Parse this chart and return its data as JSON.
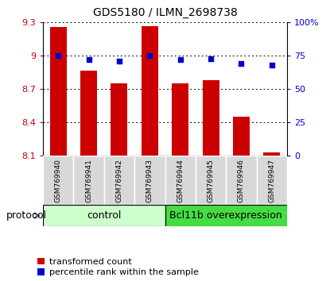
{
  "title": "GDS5180 / ILMN_2698738",
  "samples": [
    "GSM769940",
    "GSM769941",
    "GSM769942",
    "GSM769943",
    "GSM769944",
    "GSM769945",
    "GSM769946",
    "GSM769947"
  ],
  "transformed_counts": [
    9.26,
    8.87,
    8.75,
    9.27,
    8.75,
    8.78,
    8.45,
    8.13
  ],
  "percentile_ranks": [
    75,
    72,
    71,
    75,
    72,
    73,
    69,
    68
  ],
  "ylim_left": [
    8.1,
    9.3
  ],
  "ylim_right": [
    0,
    100
  ],
  "yticks_left": [
    8.1,
    8.4,
    8.7,
    9.0,
    9.3
  ],
  "yticks_right": [
    0,
    25,
    50,
    75,
    100
  ],
  "ytick_labels_left": [
    "8.1",
    "8.4",
    "8.7",
    "9",
    "9.3"
  ],
  "ytick_labels_right": [
    "0",
    "25",
    "50",
    "75",
    "100%"
  ],
  "bar_color": "#cc0000",
  "dot_color": "#0000cc",
  "bar_width": 0.55,
  "group_labels": [
    "control",
    "Bcl11b overexpression"
  ],
  "group_light_green": "#ccffcc",
  "group_dark_green": "#44dd44",
  "protocol_label": "protocol",
  "legend_bar_label": "transformed count",
  "legend_dot_label": "percentile rank within the sample",
  "title_fontsize": 10,
  "tick_fontsize": 8,
  "sample_fontsize": 6.5,
  "group_fontsize": 9
}
